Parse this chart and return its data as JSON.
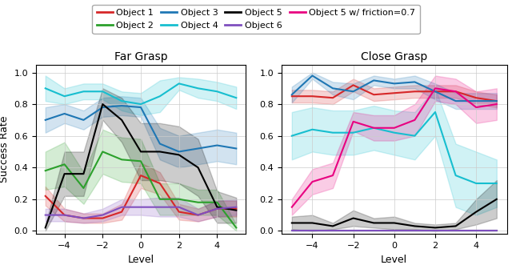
{
  "x": [
    -5,
    -4,
    -3,
    -2,
    -1,
    0,
    1,
    2,
    3,
    4,
    5
  ],
  "far_grasp": {
    "obj1": {
      "mean": [
        0.22,
        0.1,
        0.08,
        0.08,
        0.12,
        0.35,
        0.3,
        0.12,
        0.1,
        0.14,
        0.14
      ],
      "std": [
        0.06,
        0.04,
        0.03,
        0.03,
        0.05,
        0.08,
        0.07,
        0.05,
        0.04,
        0.05,
        0.05
      ]
    },
    "obj2": {
      "mean": [
        0.38,
        0.42,
        0.27,
        0.5,
        0.45,
        0.44,
        0.2,
        0.2,
        0.18,
        0.18,
        0.02
      ],
      "std": [
        0.12,
        0.14,
        0.1,
        0.14,
        0.14,
        0.14,
        0.1,
        0.1,
        0.08,
        0.08,
        0.02
      ]
    },
    "obj3": {
      "mean": [
        0.7,
        0.74,
        0.7,
        0.78,
        0.79,
        0.78,
        0.55,
        0.5,
        0.52,
        0.54,
        0.52
      ],
      "std": [
        0.08,
        0.06,
        0.06,
        0.06,
        0.06,
        0.06,
        0.1,
        0.1,
        0.1,
        0.1,
        0.1
      ]
    },
    "obj4": {
      "mean": [
        0.9,
        0.85,
        0.88,
        0.88,
        0.82,
        0.8,
        0.85,
        0.93,
        0.9,
        0.88,
        0.84
      ],
      "std": [
        0.08,
        0.05,
        0.05,
        0.05,
        0.06,
        0.07,
        0.1,
        0.04,
        0.06,
        0.06,
        0.07
      ]
    },
    "obj5": {
      "mean": [
        0.02,
        0.36,
        0.36,
        0.8,
        0.7,
        0.5,
        0.5,
        0.48,
        0.4,
        0.15,
        0.13
      ],
      "std": [
        0.02,
        0.14,
        0.14,
        0.1,
        0.14,
        0.18,
        0.18,
        0.18,
        0.18,
        0.1,
        0.08
      ]
    },
    "obj6": {
      "mean": [
        0.1,
        0.1,
        0.08,
        0.1,
        0.15,
        0.15,
        0.15,
        0.15,
        0.1,
        0.14,
        0.15
      ],
      "std": [
        0.04,
        0.04,
        0.03,
        0.04,
        0.05,
        0.05,
        0.06,
        0.06,
        0.04,
        0.05,
        0.05
      ]
    }
  },
  "close_grasp": {
    "obj1": {
      "mean": [
        0.85,
        0.85,
        0.84,
        0.92,
        0.86,
        0.87,
        0.88,
        0.88,
        0.88,
        0.84,
        0.82
      ],
      "std": [
        0.04,
        0.04,
        0.04,
        0.04,
        0.04,
        0.04,
        0.04,
        0.04,
        0.04,
        0.04,
        0.04
      ]
    },
    "obj2": {
      "mean": [
        0.0,
        0.0,
        0.0,
        0.0,
        0.0,
        0.0,
        0.0,
        0.0,
        0.0,
        0.0,
        0.0
      ],
      "std": [
        0.0,
        0.0,
        0.0,
        0.0,
        0.0,
        0.0,
        0.0,
        0.0,
        0.0,
        0.0,
        0.0
      ]
    },
    "obj3": {
      "mean": [
        0.86,
        0.98,
        0.9,
        0.88,
        0.95,
        0.93,
        0.94,
        0.88,
        0.82,
        0.82,
        0.82
      ],
      "std": [
        0.05,
        0.02,
        0.04,
        0.05,
        0.03,
        0.03,
        0.04,
        0.05,
        0.05,
        0.05,
        0.05
      ]
    },
    "obj4": {
      "mean": [
        0.6,
        0.64,
        0.62,
        0.62,
        0.65,
        0.62,
        0.6,
        0.75,
        0.35,
        0.3,
        0.3
      ],
      "std": [
        0.15,
        0.14,
        0.14,
        0.14,
        0.14,
        0.14,
        0.15,
        0.15,
        0.2,
        0.2,
        0.15
      ]
    },
    "obj5": {
      "mean": [
        0.05,
        0.05,
        0.03,
        0.08,
        0.05,
        0.05,
        0.03,
        0.02,
        0.03,
        0.12,
        0.2
      ],
      "std": [
        0.04,
        0.05,
        0.02,
        0.05,
        0.03,
        0.04,
        0.02,
        0.02,
        0.02,
        0.08,
        0.12
      ]
    },
    "obj6": {
      "mean": [
        0.0,
        0.0,
        0.0,
        0.0,
        0.0,
        0.0,
        0.0,
        0.0,
        0.0,
        0.0,
        0.0
      ],
      "std": [
        0.0,
        0.0,
        0.0,
        0.0,
        0.0,
        0.0,
        0.0,
        0.0,
        0.0,
        0.0,
        0.0
      ]
    },
    "obj5_friction": {
      "mean": [
        0.15,
        0.31,
        0.35,
        0.69,
        0.65,
        0.65,
        0.7,
        0.9,
        0.88,
        0.78,
        0.8
      ],
      "std": [
        0.05,
        0.08,
        0.08,
        0.06,
        0.08,
        0.08,
        0.1,
        0.08,
        0.08,
        0.1,
        0.1
      ]
    }
  },
  "colors": {
    "obj1": "#d62728",
    "obj2": "#2ca02c",
    "obj3": "#1f77b4",
    "obj4": "#17becf",
    "obj5": "#000000",
    "obj6": "#7f4fbf",
    "obj5_friction": "#e80080"
  },
  "legend_labels": [
    "Object 1",
    "Object 2",
    "Object 3",
    "Object 4",
    "Object 5",
    "Object 6",
    "Object 5 w/ friction=0.7"
  ],
  "legend_color_keys": [
    "obj1",
    "obj2",
    "obj3",
    "obj4",
    "obj5",
    "obj6",
    "obj5_friction"
  ],
  "far_title": "Far Grasp",
  "close_title": "Close Grasp",
  "ylabel": "Success Rate",
  "xlabel": "Level",
  "ylim": [
    -0.02,
    1.05
  ],
  "xlim": [
    -5.5,
    5.5
  ],
  "xticks": [
    -4,
    -2,
    0,
    2,
    4
  ],
  "yticks": [
    0.0,
    0.2,
    0.4,
    0.6,
    0.8,
    1.0
  ],
  "alpha_fill": 0.2,
  "linewidth": 1.5,
  "figsize": [
    6.4,
    3.36
  ],
  "dpi": 100
}
